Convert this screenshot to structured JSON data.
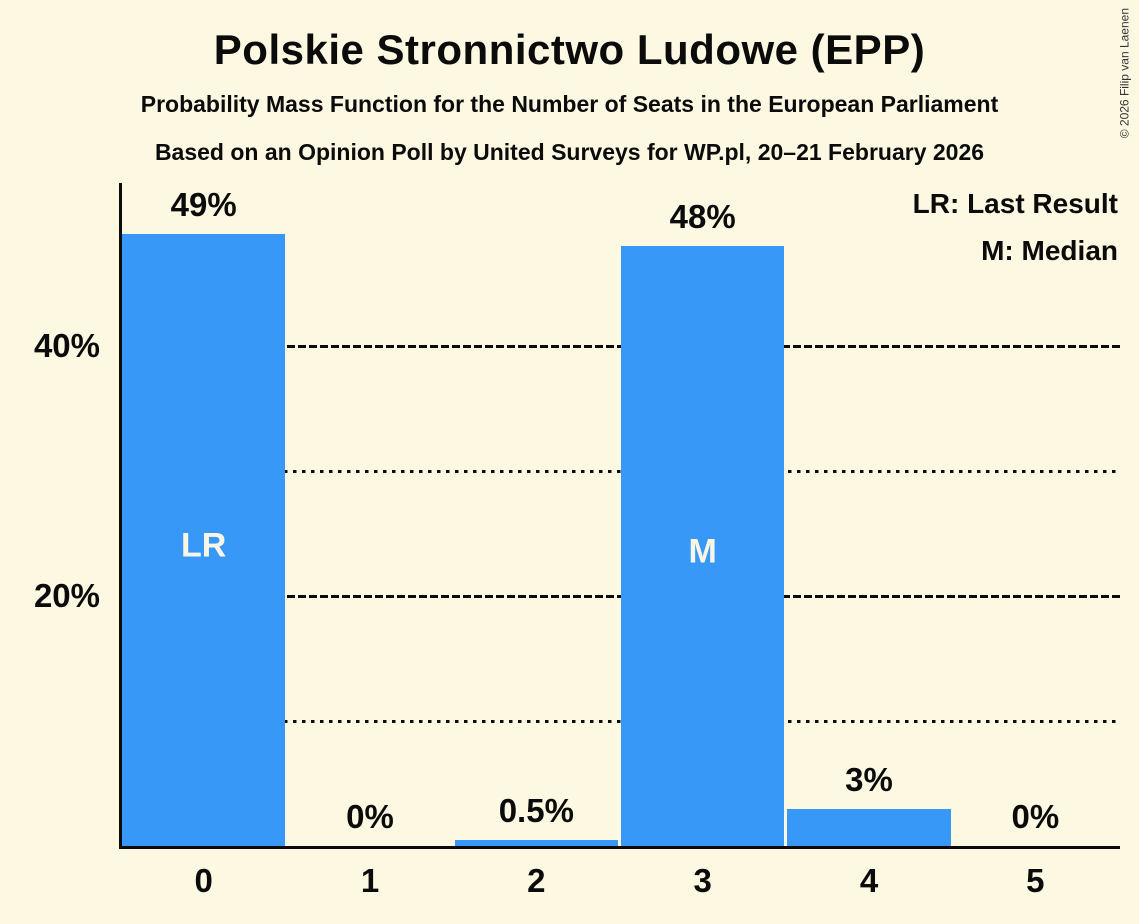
{
  "page": {
    "title": "Polskie Stronnictwo Ludowe (EPP)",
    "subtitle": "Probability Mass Function for the Number of Seats in the European Parliament",
    "source_line": "Based on an Opinion Poll by United Surveys for WP.pl, 20–21 February 2026",
    "copyright": "© 2026 Filip van Laenen"
  },
  "legend": {
    "lr": "LR: Last Result",
    "m": "M: Median"
  },
  "colors": {
    "background": "#FCF8E2",
    "bar": "#3798F8",
    "ink": "#0B0B0B",
    "bar_annotation_text": "#FAF6E6"
  },
  "chart_data": {
    "type": "bar",
    "title": "Probability Mass Function for the Number of Seats in the European Parliament",
    "categories": [
      "0",
      "1",
      "2",
      "3",
      "4",
      "5"
    ],
    "values": [
      49,
      0,
      0.5,
      48,
      3,
      0
    ],
    "value_labels": [
      "49%",
      "0%",
      "0.5%",
      "48%",
      "3%",
      "0%"
    ],
    "bar_annotations": [
      "LR",
      null,
      null,
      "M",
      null,
      null
    ],
    "xlabel": "",
    "ylabel": "",
    "ylim": [
      0,
      53
    ],
    "grid": "horizontal-partial",
    "legend_position": "top-right",
    "yticks": [
      {
        "value": 20,
        "label": "20%"
      },
      {
        "value": 40,
        "label": "40%"
      }
    ],
    "gridlines": [
      {
        "value": 10,
        "style": "dotted"
      },
      {
        "value": 20,
        "style": "dashed"
      },
      {
        "value": 30,
        "style": "dotted"
      },
      {
        "value": 40,
        "style": "dashed"
      }
    ]
  }
}
